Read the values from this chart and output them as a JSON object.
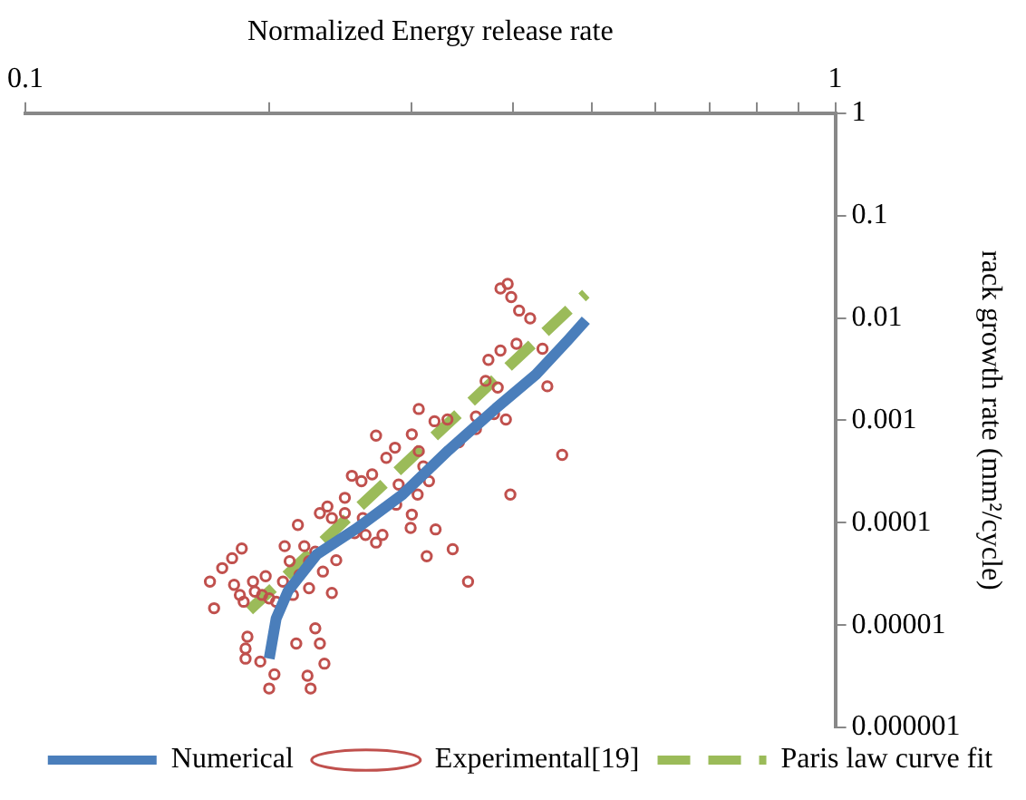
{
  "chart_data": {
    "type": "line",
    "xlabel": "Normalized Energy release rate",
    "ylabel": "rack growth rate (mm²/cycle)",
    "log": "xy",
    "legend": "bottom",
    "xlim": [
      0.1,
      1
    ],
    "xticks": [
      0.1,
      {
        "value": 0.2,
        "label": null
      },
      {
        "value": 0.3,
        "label": null
      },
      {
        "value": 0.4,
        "label": null
      },
      {
        "value": 0.5,
        "label": null
      },
      {
        "value": 0.6,
        "label": null
      },
      {
        "value": 0.7,
        "label": null
      },
      {
        "value": 0.8,
        "label": null
      },
      {
        "value": 0.9,
        "label": null
      },
      1
    ],
    "ylim": [
      1e-06,
      1
    ],
    "yticks": [
      {
        "value": 1e-06,
        "label": "0.000001"
      },
      {
        "value": 1e-05,
        "label": "0.00001"
      },
      0.0001,
      0.001,
      0.01,
      0.1,
      1
    ],
    "series": [
      {
        "name": "Numerical",
        "type": "line",
        "color": "#4a7ebb",
        "marker": "none",
        "line_style": "solid",
        "x": [
          0.2,
          0.204,
          0.211,
          0.229,
          0.256,
          0.292,
          0.333,
          0.381,
          0.427,
          0.468,
          0.492
        ],
        "values": [
          4.7e-06,
          1.16e-05,
          2.15e-05,
          4.9e-05,
          8.7e-05,
          0.000188,
          0.00051,
          0.00131,
          0.0028,
          0.0061,
          0.0095
        ]
      },
      {
        "name": "Experimental[19]",
        "type": "scatter",
        "color": "#c0504d",
        "marker": "circle",
        "x": [
          0.169,
          0.171,
          0.175,
          0.18,
          0.185,
          0.181,
          0.184,
          0.186,
          0.191,
          0.192,
          0.198,
          0.2,
          0.204,
          0.212,
          0.209,
          0.217,
          0.221,
          0.224,
          0.218,
          0.214,
          0.224,
          0.233,
          0.231,
          0.236,
          0.239,
          0.248,
          0.248,
          0.253,
          0.26,
          0.268,
          0.271,
          0.279,
          0.286,
          0.263,
          0.271,
          0.276,
          0.287,
          0.289,
          0.3,
          0.299,
          0.306,
          0.3,
          0.306,
          0.31,
          0.315,
          0.305,
          0.321,
          0.313,
          0.337,
          0.352,
          0.32,
          0.332,
          0.343,
          0.36,
          0.36,
          0.379,
          0.392,
          0.383,
          0.37,
          0.373,
          0.386,
          0.404,
          0.435,
          0.441,
          0.46,
          0.397,
          0.386,
          0.394,
          0.398,
          0.407,
          0.42,
          0.188,
          0.187,
          0.187,
          0.195,
          0.203,
          0.2,
          0.216,
          0.228,
          0.231,
          0.234,
          0.223,
          0.225,
          0.239,
          0.228,
          0.242,
          0.255,
          0.261,
          0.208,
          0.196
        ],
        "values": [
          2.66e-05,
          1.46e-05,
          3.6e-05,
          4.5e-05,
          5.6e-05,
          2.47e-05,
          1.97e-05,
          1.69e-05,
          2.66e-05,
          2.12e-05,
          3e-05,
          1.82e-05,
          1.69e-05,
          4.2e-05,
          5.9e-05,
          9.5e-05,
          5.9e-05,
          4.2e-05,
          3.1e-05,
          1.97e-05,
          2.29e-05,
          3.33e-05,
          0.000124,
          0.000144,
          0.000111,
          0.000124,
          0.000175,
          0.000287,
          0.000254,
          0.000296,
          0.00071,
          0.00043,
          0.00054,
          7.6e-05,
          6.4e-05,
          7.6e-05,
          0.00015,
          0.000236,
          0.00012,
          8.9e-05,
          0.00129,
          0.00073,
          0.0005,
          0.000354,
          0.000254,
          0.000188,
          8.6e-05,
          4.7e-05,
          5.5e-05,
          2.66e-05,
          0.00098,
          0.00102,
          0.00061,
          0.00109,
          0.00082,
          0.00115,
          0.00102,
          0.00209,
          0.00243,
          0.0039,
          0.0048,
          0.0056,
          0.005,
          0.00215,
          0.00046,
          0.000188,
          0.0194,
          0.0215,
          0.016,
          0.0118,
          0.0099,
          7.7e-06,
          5.9e-06,
          4.7e-06,
          4.4e-06,
          3.3e-06,
          2.4e-06,
          6.6e-06,
          9.3e-06,
          6.6e-06,
          4.2e-06,
          3.2e-06,
          2.4e-06,
          2.06e-05,
          5.2e-05,
          4.3e-05,
          7.9e-05,
          0.000111,
          2.66e-05,
          1.97e-05
        ]
      },
      {
        "name": "Paris law curve fit",
        "type": "line",
        "color": "#9bbb59",
        "marker": "none",
        "line_style": "dashed",
        "x": [
          0.189,
          0.492
        ],
        "values": [
          1.39e-05,
          0.0172
        ]
      }
    ]
  }
}
